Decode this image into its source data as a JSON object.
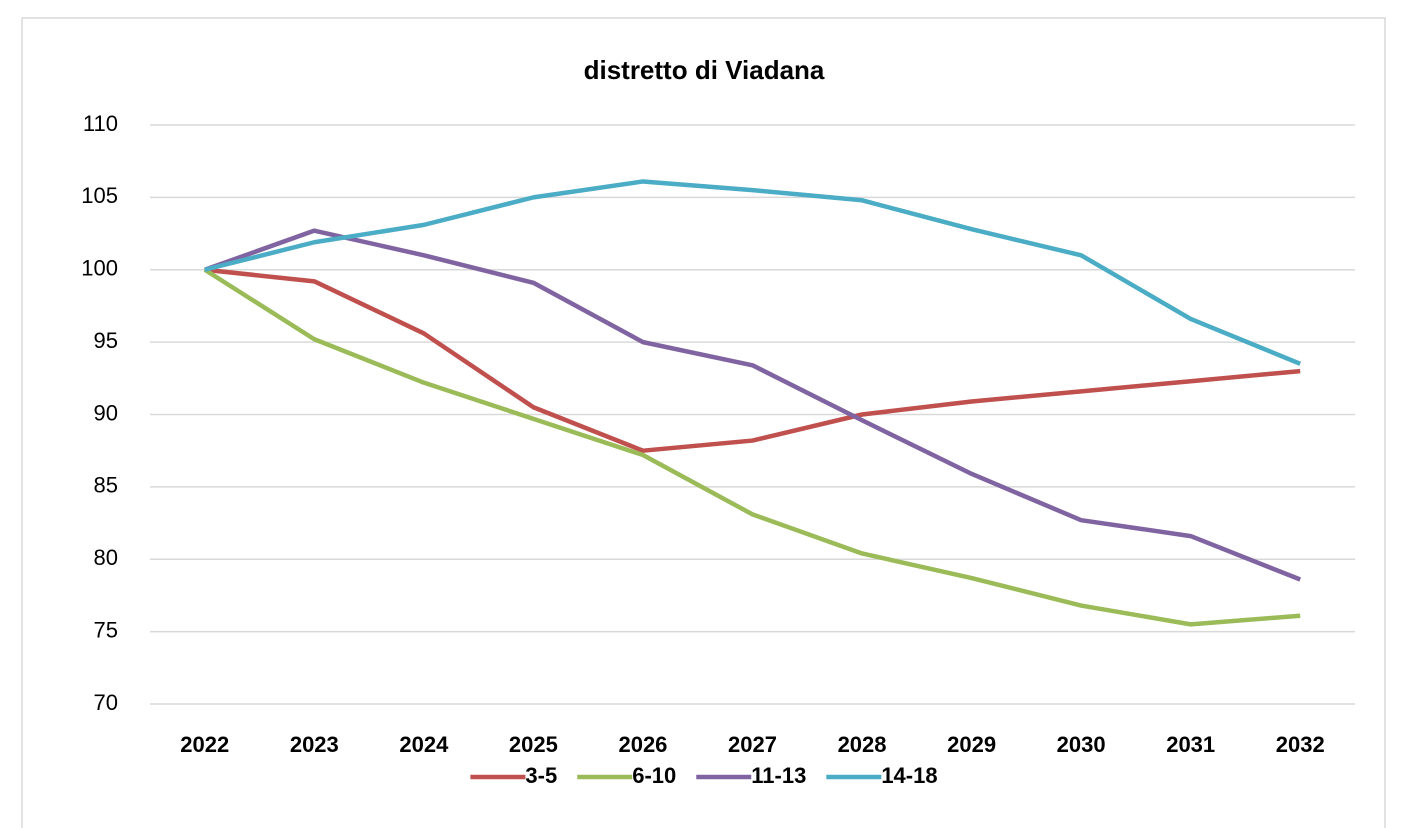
{
  "chart_data": {
    "type": "line",
    "title": "distretto di Viadana",
    "categories": [
      "2022",
      "2023",
      "2024",
      "2025",
      "2026",
      "2027",
      "2028",
      "2029",
      "2030",
      "2031",
      "2032"
    ],
    "series": [
      {
        "name": "3-5",
        "color": "#c0504d",
        "values": [
          100,
          99.2,
          95.6,
          90.5,
          87.5,
          88.2,
          90.0,
          90.9,
          91.6,
          92.3,
          93.0
        ]
      },
      {
        "name": "6-10",
        "color": "#9bbb59",
        "values": [
          100,
          95.2,
          92.2,
          89.7,
          87.2,
          83.1,
          80.4,
          78.7,
          76.8,
          75.5,
          76.1
        ]
      },
      {
        "name": "11-13",
        "color": "#8064a2",
        "values": [
          100,
          102.7,
          101.0,
          99.1,
          95.0,
          93.4,
          89.6,
          85.9,
          82.7,
          81.6,
          78.6
        ]
      },
      {
        "name": "14-18",
        "color": "#4bacc6",
        "values": [
          100,
          101.9,
          103.1,
          105.0,
          106.1,
          105.5,
          104.8,
          102.8,
          101.0,
          96.6,
          93.5
        ]
      }
    ],
    "ylim": [
      70,
      110
    ],
    "yticks": [
      70,
      75,
      80,
      85,
      90,
      95,
      100,
      105,
      110
    ],
    "grid": true,
    "legend": "bottom"
  }
}
